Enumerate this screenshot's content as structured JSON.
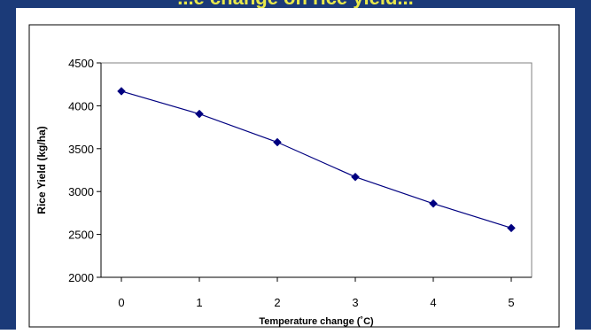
{
  "header": {
    "partial_text": "...e change on rice yield..."
  },
  "colors": {
    "frame": "#1b3a78",
    "header_text": "#e8e84a",
    "series": "#000080"
  },
  "chart_data": {
    "type": "line",
    "title": "",
    "xlabel": "Temperature change (˚C)",
    "ylabel": "Rice  Yield  (kg/ha)",
    "x": [
      0,
      1,
      2,
      3,
      4,
      5
    ],
    "xticks": [
      "0",
      "1",
      "2",
      "3",
      "4",
      "5"
    ],
    "yticks": [
      "2000",
      "2500",
      "3000",
      "3500",
      "4000",
      "4500"
    ],
    "ylim": [
      2000,
      4500
    ],
    "xlim": [
      0,
      5
    ],
    "grid": false,
    "series": [
      {
        "name": "",
        "values": [
          4170,
          3905,
          3575,
          3170,
          2860,
          2575
        ],
        "color": "#000080",
        "marker": "diamond"
      }
    ]
  }
}
